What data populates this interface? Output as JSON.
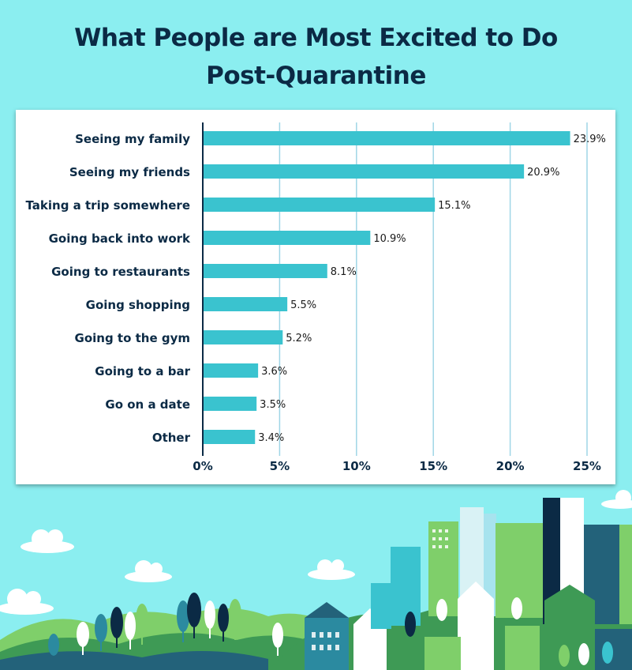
{
  "title_line1": "What People are Most Excited to Do",
  "title_line2": "Post-Quarantine",
  "chart_data": {
    "type": "bar",
    "orientation": "horizontal",
    "categories": [
      "Seeing my family",
      "Seeing my friends",
      "Taking a trip somewhere",
      "Going back into work",
      "Going to restaurants",
      "Going shopping",
      "Going to the gym",
      "Going to a bar",
      "Go on a date",
      "Other"
    ],
    "values": [
      23.9,
      20.9,
      15.1,
      10.9,
      8.1,
      5.5,
      5.2,
      3.6,
      3.5,
      3.4
    ],
    "value_labels": [
      "23.9%",
      "20.9%",
      "15.1%",
      "10.9%",
      "8.1%",
      "5.5%",
      "5.2%",
      "3.6%",
      "3.5%",
      "3.4%"
    ],
    "x_ticks": [
      0,
      5,
      10,
      15,
      20,
      25
    ],
    "x_tick_labels": [
      "0%",
      "5%",
      "10%",
      "15%",
      "20%",
      "25%"
    ],
    "xlim": [
      0,
      25
    ],
    "grid": true,
    "bar_color": "#3ac3cf",
    "grid_color": "#9fd6e6"
  },
  "colors": {
    "background": "#8beef0",
    "title": "#0b2a45",
    "panel": "#ffffff"
  }
}
